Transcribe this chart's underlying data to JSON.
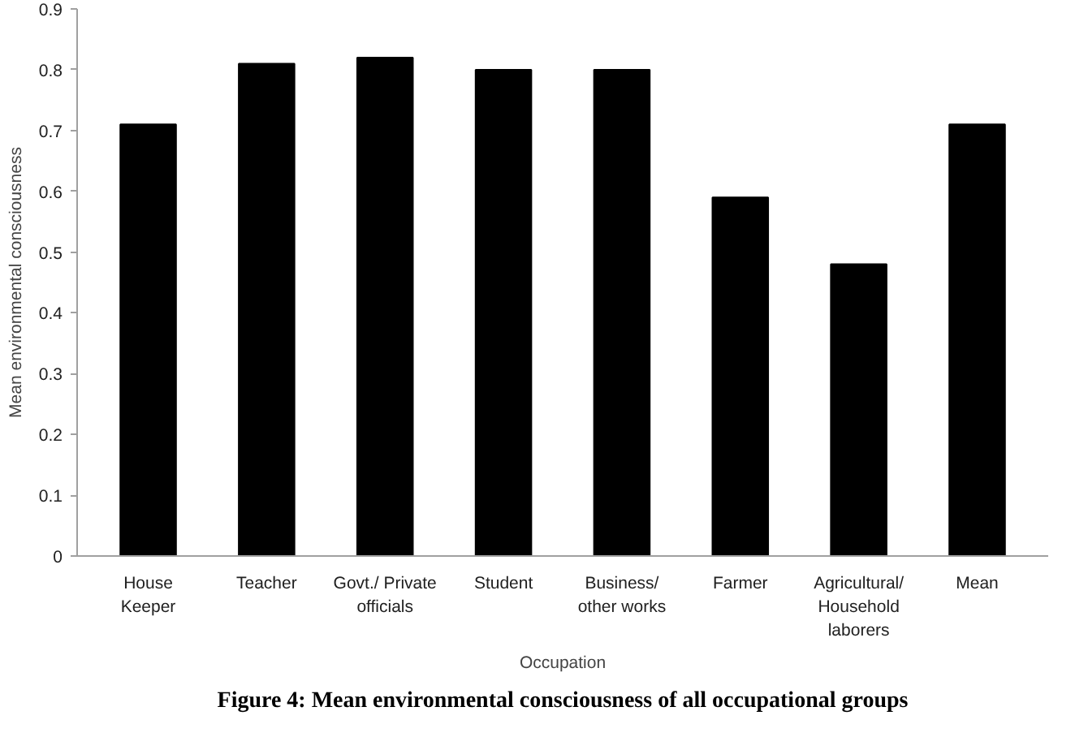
{
  "chart_data": {
    "type": "bar",
    "title": "Figure 4: Mean environmental consciousness of all occupational groups",
    "xlabel": "Occupation",
    "ylabel": "Mean environmental consciousness",
    "categories": [
      "House\nKeeper",
      "Teacher",
      "Govt./ Private\nofficials",
      "Student",
      "Business/\nother works",
      "Farmer",
      "Agricultural/\nHousehold\nlaborers",
      "Mean"
    ],
    "values": [
      0.71,
      0.81,
      0.82,
      0.8,
      0.8,
      0.59,
      0.48,
      0.71
    ],
    "color": "#000000",
    "ylim": [
      0,
      0.9
    ],
    "yticks": [
      0,
      0.1,
      0.2,
      0.3,
      0.4,
      0.5,
      0.6,
      0.7,
      0.8,
      0.9
    ],
    "grid": false
  }
}
